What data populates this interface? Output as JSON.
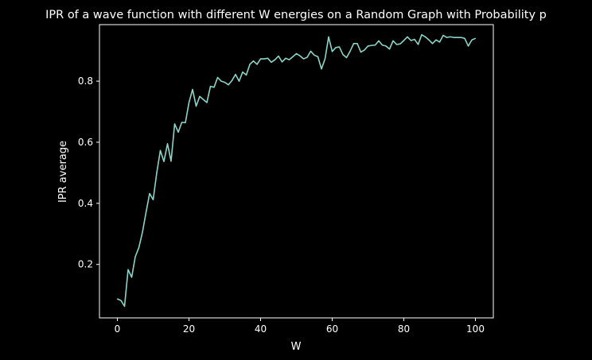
{
  "colors": {
    "background": "#000000",
    "axes": "#ffffff",
    "text": "#ffffff",
    "line": "#8dd3c7"
  },
  "chart_data": {
    "type": "line",
    "title": "IPR of a wave function with different W energies on a Random Graph with Probability p",
    "xlabel": "W",
    "ylabel": "IPR average",
    "xlim": [
      -5,
      105
    ],
    "ylim": [
      0.025,
      0.985
    ],
    "xticks": [
      0,
      20,
      40,
      60,
      80,
      100
    ],
    "yticks": [
      0.2,
      0.4,
      0.6,
      0.8
    ],
    "xtick_labels": [
      "0",
      "20",
      "40",
      "60",
      "80",
      "100"
    ],
    "ytick_labels": [
      "0.2",
      "0.4",
      "0.6",
      "0.8"
    ],
    "grid": false,
    "series": [
      {
        "color": "#8dd3c7",
        "x": [
          0,
          1,
          2,
          3,
          4,
          5,
          6,
          7,
          8,
          9,
          10,
          11,
          12,
          13,
          14,
          15,
          16,
          17,
          18,
          19,
          20,
          21,
          22,
          23,
          24,
          25,
          26,
          27,
          28,
          29,
          30,
          31,
          32,
          33,
          34,
          35,
          36,
          37,
          38,
          39,
          40,
          41,
          42,
          43,
          44,
          45,
          46,
          47,
          48,
          49,
          50,
          51,
          52,
          53,
          54,
          55,
          56,
          57,
          58,
          59,
          60,
          61,
          62,
          63,
          64,
          65,
          66,
          67,
          68,
          69,
          70,
          71,
          72,
          73,
          74,
          75,
          76,
          77,
          78,
          79,
          80,
          81,
          82,
          83,
          84,
          85,
          86,
          87,
          88,
          89,
          90,
          91,
          92,
          93,
          94,
          95,
          96,
          97,
          98,
          99,
          100
        ],
        "values": [
          0.087,
          0.082,
          0.063,
          0.183,
          0.158,
          0.225,
          0.255,
          0.305,
          0.37,
          0.432,
          0.412,
          0.5,
          0.573,
          0.537,
          0.595,
          0.538,
          0.66,
          0.633,
          0.665,
          0.664,
          0.73,
          0.773,
          0.718,
          0.75,
          0.74,
          0.73,
          0.783,
          0.78,
          0.812,
          0.8,
          0.796,
          0.788,
          0.802,
          0.822,
          0.8,
          0.83,
          0.82,
          0.855,
          0.866,
          0.855,
          0.873,
          0.873,
          0.875,
          0.862,
          0.87,
          0.882,
          0.863,
          0.875,
          0.87,
          0.88,
          0.89,
          0.883,
          0.873,
          0.878,
          0.898,
          0.885,
          0.88,
          0.84,
          0.873,
          0.945,
          0.897,
          0.91,
          0.912,
          0.887,
          0.877,
          0.898,
          0.923,
          0.923,
          0.895,
          0.902,
          0.915,
          0.917,
          0.918,
          0.932,
          0.918,
          0.915,
          0.905,
          0.932,
          0.92,
          0.922,
          0.933,
          0.945,
          0.933,
          0.937,
          0.92,
          0.952,
          0.945,
          0.935,
          0.923,
          0.935,
          0.928,
          0.95,
          0.943,
          0.945,
          0.943,
          0.943,
          0.943,
          0.94,
          0.915,
          0.935,
          0.94
        ]
      }
    ]
  }
}
